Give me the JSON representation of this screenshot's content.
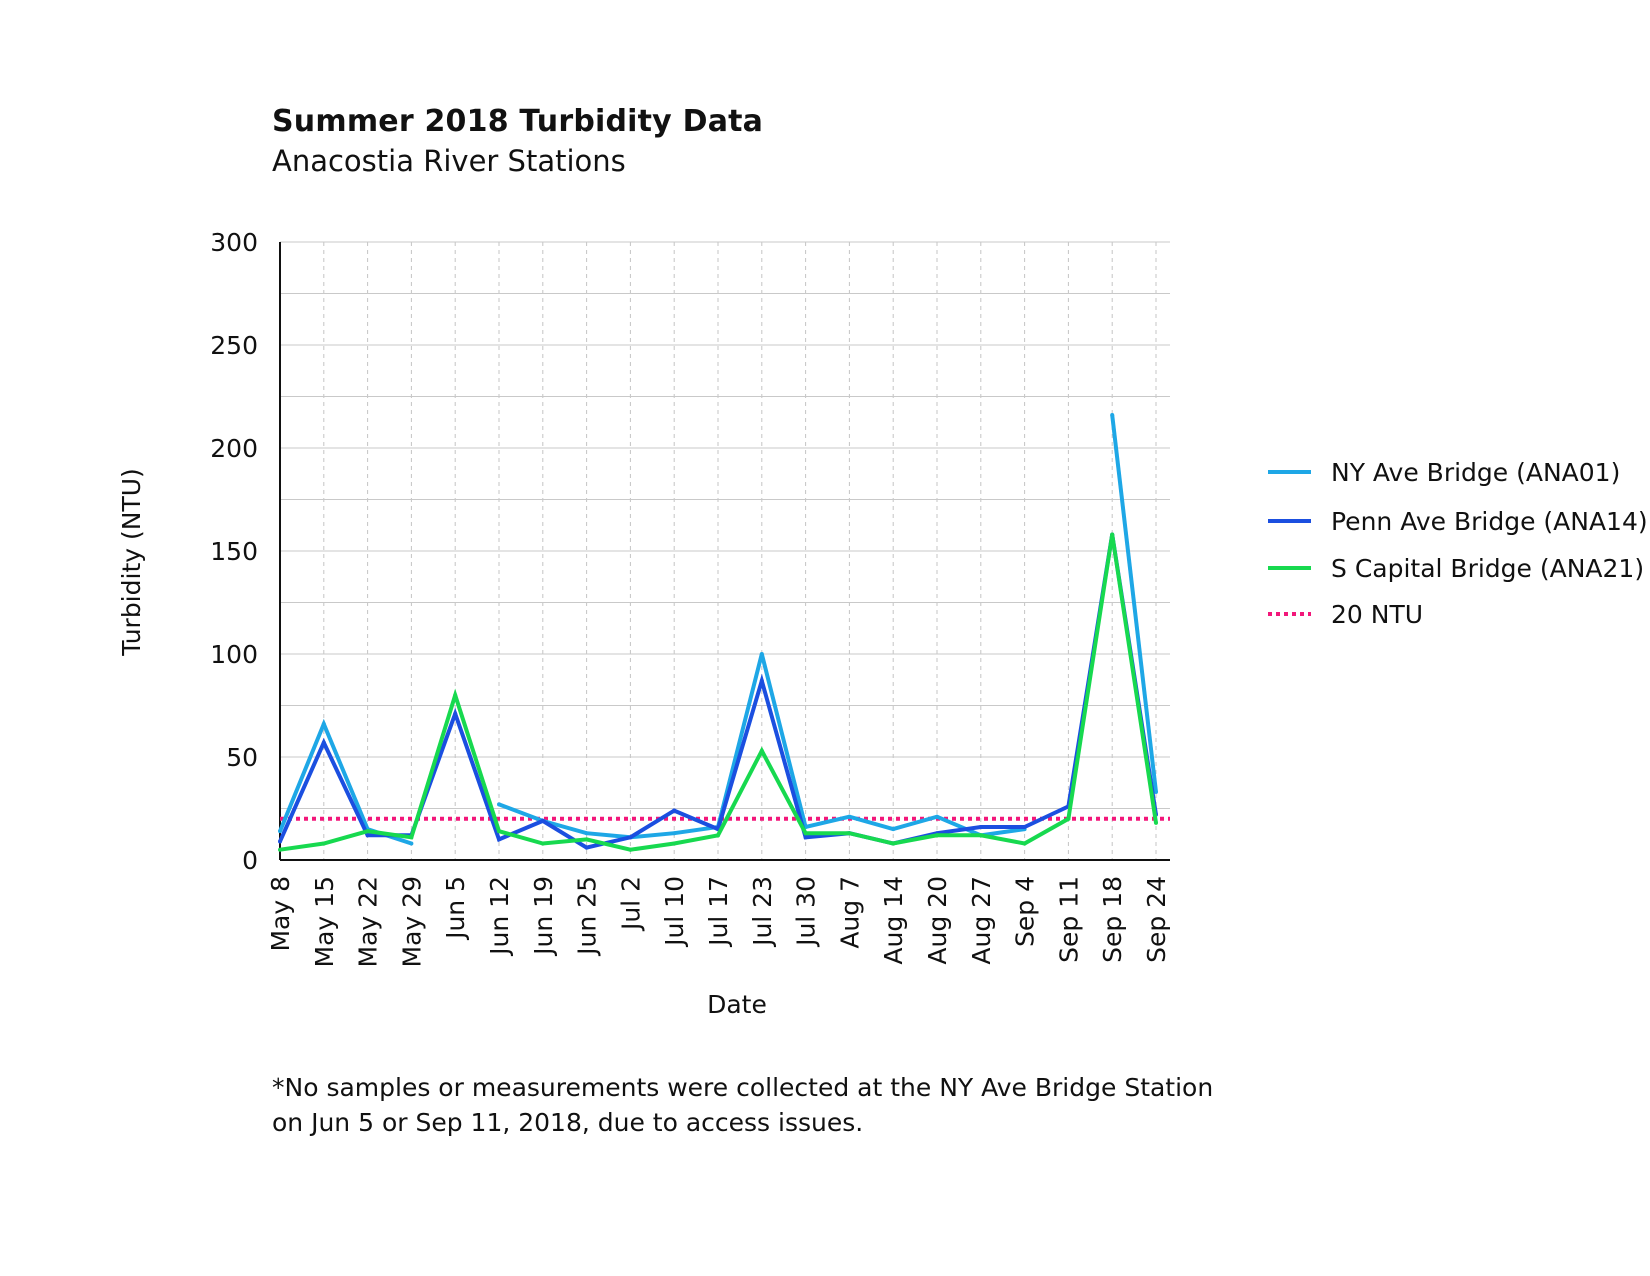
{
  "chart_data": {
    "type": "line",
    "title": "Summer 2018 Turbidity Data",
    "subtitle": "Anacostia River Stations",
    "xlabel": "Date",
    "ylabel": "Turbidity (NTU)",
    "ylim": [
      0,
      300
    ],
    "yticks": [
      0,
      50,
      100,
      150,
      200,
      250,
      300
    ],
    "grid": true,
    "legend_position": "right",
    "categories": [
      "May 8",
      "May 15",
      "May 22",
      "May 29",
      "Jun 5",
      "Jun 12",
      "Jun 19",
      "Jun 25",
      "Jul 2",
      "Jul 10",
      "Jul 17",
      "Jul 23",
      "Jul 30",
      "Aug 7",
      "Aug 14",
      "Aug 20",
      "Aug 27",
      "Sep 4",
      "Sep 11",
      "Sep 18",
      "Sep 24"
    ],
    "series": [
      {
        "name": "NY Ave Bridge (ANA01)",
        "color": "#1ea7e6",
        "values": [
          14,
          66,
          15,
          8,
          null,
          27,
          19,
          13,
          11,
          13,
          16,
          100,
          16,
          21,
          15,
          21,
          12,
          15,
          null,
          216,
          33
        ]
      },
      {
        "name": "Penn Ave Bridge (ANA14)",
        "color": "#1b4fe0",
        "values": [
          9,
          57,
          12,
          12,
          71,
          10,
          19,
          6,
          11,
          24,
          15,
          87,
          11,
          13,
          8,
          13,
          16,
          16,
          26,
          158,
          22
        ]
      },
      {
        "name": "S Capital Bridge (ANA21)",
        "color": "#17d94f",
        "values": [
          5,
          8,
          14,
          11,
          80,
          14,
          8,
          10,
          5,
          8,
          12,
          53,
          13,
          13,
          8,
          12,
          12,
          8,
          20,
          158,
          18
        ]
      }
    ],
    "reference_line": {
      "name": "20 NTU",
      "value": 20,
      "color": "#f2177a",
      "style": "dotted"
    }
  },
  "footnote": {
    "line1": "*No samples or measurements were collected at the NY Ave Bridge Station",
    "line2": "on Jun 5 or Sep 11, 2018, due to access issues."
  }
}
